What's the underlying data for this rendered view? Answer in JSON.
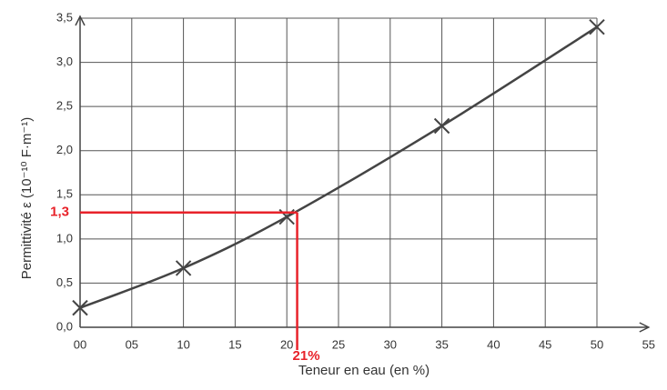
{
  "chart_data": {
    "type": "line",
    "x_label": "Teneur en eau (en %)",
    "y_label": "Permittivité ε (10⁻¹⁰ F·m⁻¹)",
    "x": [
      0,
      10,
      20,
      35,
      50
    ],
    "series": [
      {
        "values": [
          0.22,
          0.67,
          1.25,
          2.28,
          3.4
        ],
        "color": "#444444",
        "marker": "x",
        "smooth": true
      }
    ],
    "xlim": [
      0,
      55
    ],
    "xticks": [
      {
        "value": 0,
        "label": "00"
      },
      {
        "value": 5,
        "label": "05"
      },
      10,
      15,
      20,
      25,
      30,
      35,
      40,
      45,
      50,
      55
    ],
    "ylim": [
      0,
      3.5
    ],
    "yticks": [
      {
        "value": 0,
        "label": "0,0"
      },
      {
        "value": 0.5,
        "label": "0,5"
      },
      {
        "value": 1,
        "label": "1,0"
      },
      {
        "value": 1.5,
        "label": "1,5"
      },
      {
        "value": 2,
        "label": "2,0"
      },
      {
        "value": 2.5,
        "label": "2,5"
      },
      {
        "value": 3,
        "label": "3,0"
      },
      {
        "value": 3.5,
        "label": "3,5"
      }
    ],
    "grid": true,
    "annotations": [
      {
        "x": 21,
        "y": 1.3,
        "x_label": "21%",
        "y_label": "1,3",
        "color": "#e8222a"
      }
    ]
  }
}
